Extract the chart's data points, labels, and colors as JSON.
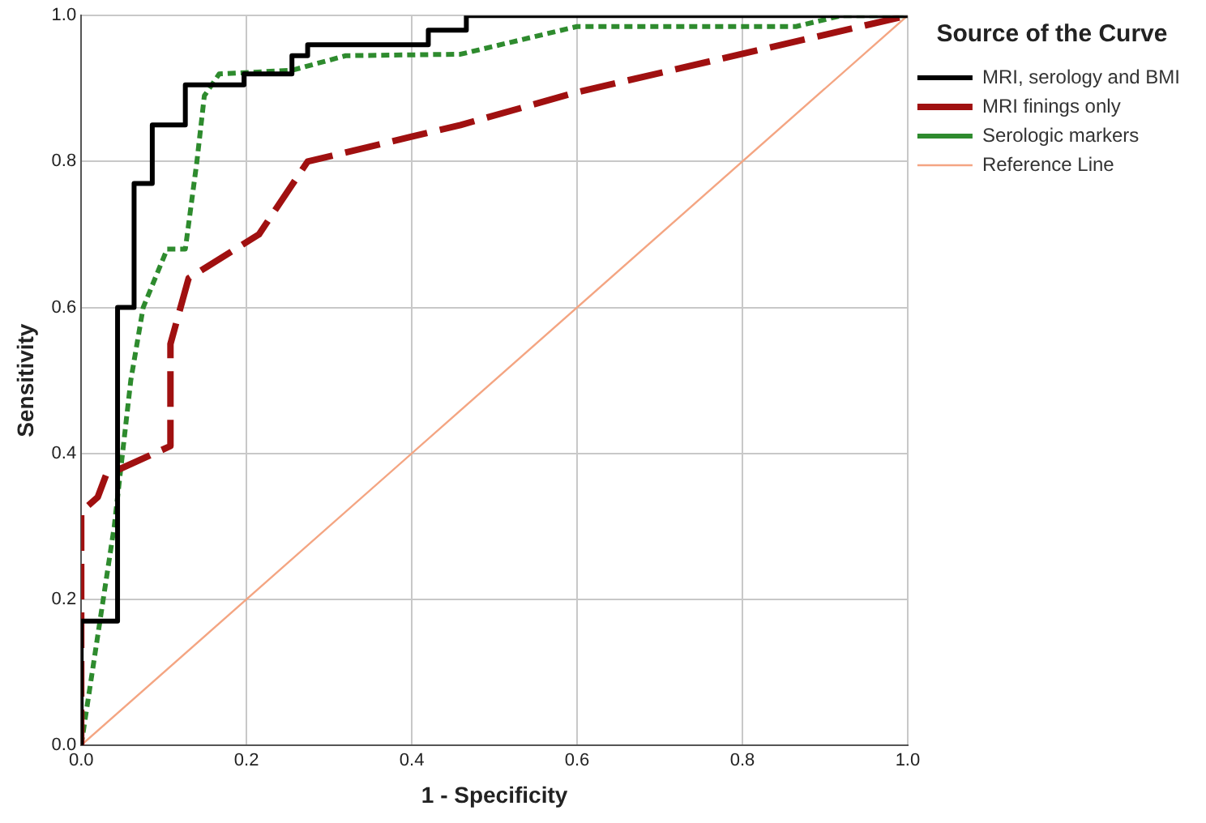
{
  "chart_data": {
    "type": "line",
    "xlabel": "1 - Specificity",
    "ylabel": "Sensitivity",
    "legend_title": "Source of the Curve",
    "legend": "right",
    "grid": true,
    "marker": "none",
    "xlim": [
      0,
      1
    ],
    "ylim": [
      0,
      1
    ],
    "xticks": [
      {
        "value": 0,
        "label": "0.0"
      },
      {
        "value": 0.2,
        "label": "0.2"
      },
      {
        "value": 0.4,
        "label": "0.4"
      },
      {
        "value": 0.6,
        "label": "0.6"
      },
      {
        "value": 0.8,
        "label": "0.8"
      },
      {
        "value": 1,
        "label": "1.0"
      }
    ],
    "yticks": [
      {
        "value": 0,
        "label": "0.0"
      },
      {
        "value": 0.2,
        "label": "0.2"
      },
      {
        "value": 0.4,
        "label": "0.4"
      },
      {
        "value": 0.6,
        "label": "0.6"
      },
      {
        "value": 0.8,
        "label": "0.8"
      },
      {
        "value": 1,
        "label": "1.0"
      }
    ],
    "series": [
      {
        "name": "MRI, serology and BMI",
        "color": "#000000",
        "line_style": "solid",
        "x": [
          0,
          0,
          0.044,
          0.044,
          0.064,
          0.064,
          0.086,
          0.086,
          0.126,
          0.126,
          0.197,
          0.197,
          0.255,
          0.255,
          0.274,
          0.274,
          0.42,
          0.42,
          0.466,
          0.466,
          1
        ],
        "values": [
          0,
          0.17,
          0.17,
          0.6,
          0.6,
          0.77,
          0.77,
          0.85,
          0.85,
          0.905,
          0.905,
          0.92,
          0.92,
          0.945,
          0.945,
          0.96,
          0.96,
          0.98,
          0.98,
          1,
          1
        ]
      },
      {
        "name": "MRI finings only",
        "color": "#a01010",
        "line_style": "dashed",
        "x": [
          0,
          0,
          0.02,
          0.03,
          0.108,
          0.108,
          0.13,
          0.215,
          0.274,
          0.459,
          0.6,
          1
        ],
        "values": [
          0,
          0.32,
          0.34,
          0.37,
          0.41,
          0.55,
          0.64,
          0.7,
          0.8,
          0.85,
          0.895,
          1
        ]
      },
      {
        "name": "Serologic markers",
        "color": "#2e8b2e",
        "line_style": "dotted",
        "x": [
          0,
          0.02,
          0.04,
          0.05,
          0.06,
          0.075,
          0.104,
          0.126,
          0.14,
          0.149,
          0.167,
          0.255,
          0.32,
          0.459,
          0.6,
          0.865,
          0.92,
          1
        ],
        "values": [
          0,
          0.15,
          0.3,
          0.4,
          0.5,
          0.6,
          0.68,
          0.68,
          0.8,
          0.89,
          0.92,
          0.925,
          0.945,
          0.947,
          0.985,
          0.985,
          1,
          1
        ]
      },
      {
        "name": "Reference Line",
        "color": "#f4a582",
        "line_style": "solid",
        "x": [
          0,
          1
        ],
        "values": [
          0,
          1
        ]
      }
    ]
  }
}
